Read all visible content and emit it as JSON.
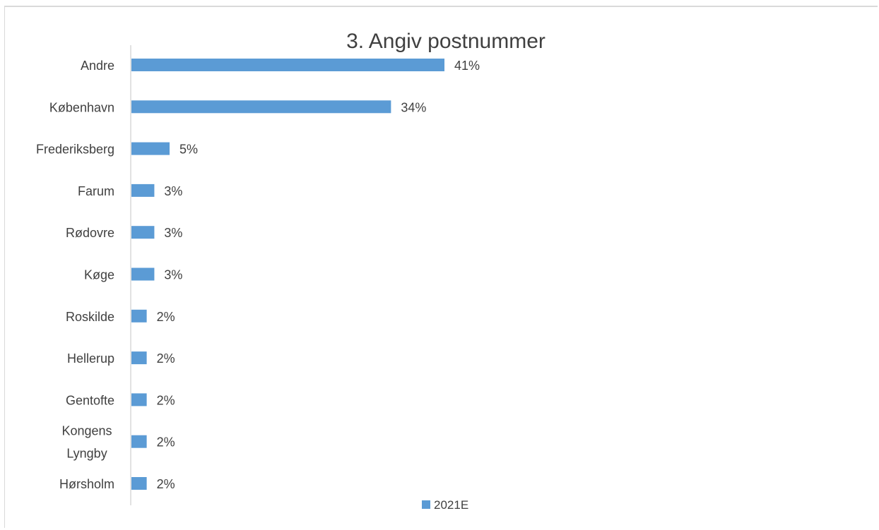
{
  "chart_data": {
    "type": "bar",
    "orientation": "horizontal",
    "title": "3. Angiv postnummer",
    "categories": [
      "Andre",
      "København",
      "Frederiksberg",
      "Farum",
      "Rødovre",
      "Køge",
      "Roskilde",
      "Hellerup",
      "Gentofte",
      "Kongens Lyngby",
      "Hørsholm"
    ],
    "series": [
      {
        "name": "2021E",
        "color": "#5b9bd5",
        "values": [
          41,
          34,
          5,
          3,
          3,
          3,
          2,
          2,
          2,
          2,
          2
        ],
        "labels": [
          "41%",
          "34%",
          "5%",
          "3%",
          "3%",
          "3%",
          "2%",
          "2%",
          "2%",
          "2%",
          "2%"
        ]
      }
    ],
    "value_unit": "%",
    "grid": false,
    "legend_position": "bottom"
  }
}
